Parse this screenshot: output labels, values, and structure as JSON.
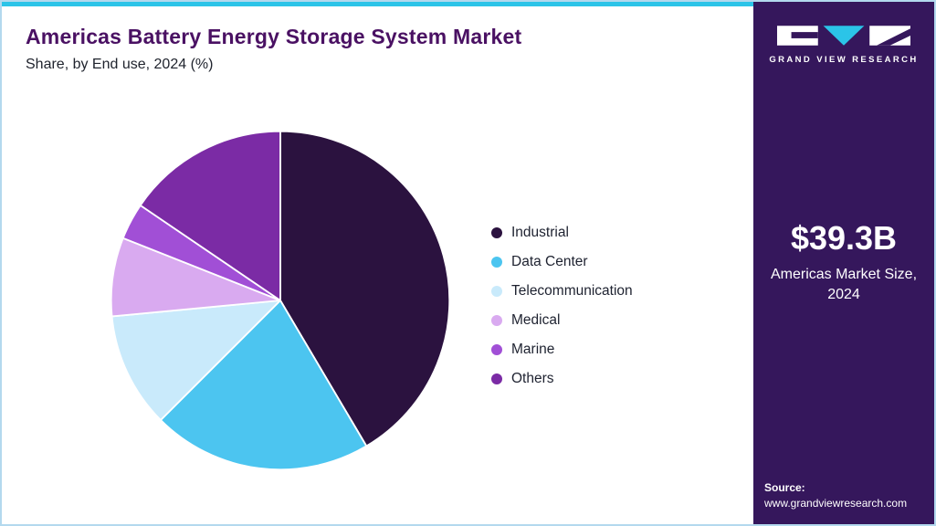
{
  "header": {
    "title": "Americas Battery Energy Storage System Market",
    "subtitle": "Share, by End use, 2024 (%)"
  },
  "chart_data": {
    "type": "pie",
    "title": "Americas Battery Energy Storage System Market Share, by End use, 2024 (%)",
    "start_angle_deg": 0,
    "direction": "clockwise",
    "legend_position": "right",
    "slices": [
      {
        "label": "Industrial",
        "value": 41.5,
        "color": "#2b123f"
      },
      {
        "label": "Data Center",
        "value": 21.0,
        "color": "#4cc5f0"
      },
      {
        "label": "Telecommunication",
        "value": 11.0,
        "color": "#c9eafb"
      },
      {
        "label": "Medical",
        "value": 7.5,
        "color": "#d9aaf0"
      },
      {
        "label": "Marine",
        "value": 3.5,
        "color": "#a14fd6"
      },
      {
        "label": "Others",
        "value": 15.5,
        "color": "#7b2ba5"
      }
    ]
  },
  "sidebar": {
    "logo_text": "GRAND VIEW RESEARCH",
    "market_size": "$39.3B",
    "market_size_caption": "Americas Market Size, 2024",
    "source_label": "Source:",
    "source_url": "www.grandviewresearch.com",
    "background_color": "#35175c",
    "accent_color": "#2bc4e8"
  }
}
